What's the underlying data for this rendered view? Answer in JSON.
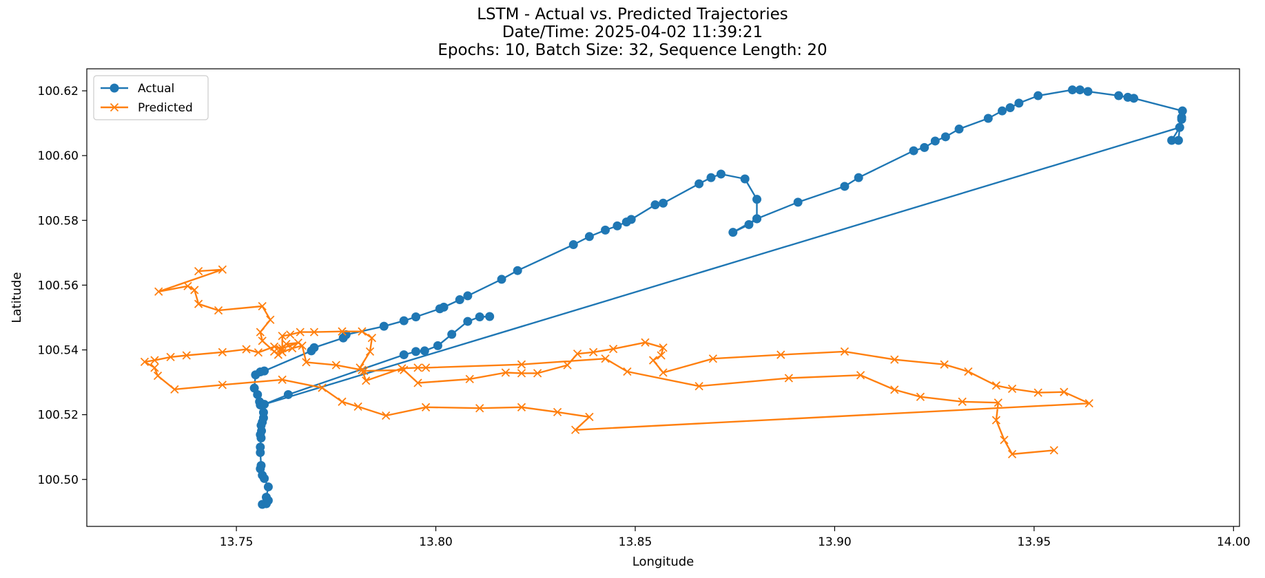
{
  "chart_data": {
    "type": "line",
    "title": [
      "LSTM - Actual vs. Predicted Trajectories",
      "Date/Time: 2025-04-02 11:39:21",
      "Epochs: 10, Batch Size: 32, Sequence Length: 20"
    ],
    "xlabel": "Longitude",
    "ylabel": "Latitude",
    "xlim": [
      13.7125,
      14.0015
    ],
    "ylim": [
      100.4855,
      100.6268
    ],
    "xticks": [
      13.75,
      13.8,
      13.85,
      13.9,
      13.95,
      14.0
    ],
    "xtick_labels": [
      "13.75",
      "13.80",
      "13.85",
      "13.90",
      "13.95",
      "14.00"
    ],
    "yticks": [
      100.5,
      100.52,
      100.54,
      100.56,
      100.58,
      100.6,
      100.62
    ],
    "ytick_labels": [
      "100.50",
      "100.52",
      "100.54",
      "100.56",
      "100.58",
      "100.60",
      "100.62"
    ],
    "grid": false,
    "legend_position": "top-left",
    "series": [
      {
        "name": "Actual",
        "color": "#1f77b4",
        "marker": "circle",
        "points": [
          [
            13.7565,
            100.4923
          ],
          [
            13.7575,
            100.4925
          ],
          [
            13.758,
            100.4935
          ],
          [
            13.7575,
            100.4945
          ],
          [
            13.758,
            100.4977
          ],
          [
            13.757,
            100.5003
          ],
          [
            13.7565,
            100.5013
          ],
          [
            13.756,
            100.5033
          ],
          [
            13.7562,
            100.5043
          ],
          [
            13.756,
            100.5083
          ],
          [
            13.756,
            100.51
          ],
          [
            13.7562,
            100.5128
          ],
          [
            13.756,
            100.5138
          ],
          [
            13.7563,
            100.515
          ],
          [
            13.7562,
            100.5167
          ],
          [
            13.7565,
            100.5177
          ],
          [
            13.7568,
            100.519
          ],
          [
            13.7568,
            100.5207
          ],
          [
            13.756,
            100.523
          ],
          [
            13.7558,
            100.524
          ],
          [
            13.7553,
            100.5262
          ],
          [
            13.7545,
            100.5282
          ],
          [
            13.7548,
            100.5323
          ],
          [
            13.756,
            100.5332
          ],
          [
            13.757,
            100.5335
          ],
          [
            13.7688,
            100.5397
          ],
          [
            13.7695,
            100.5407
          ],
          [
            13.7768,
            100.5437
          ],
          [
            13.7775,
            100.5447
          ],
          [
            13.787,
            100.5473
          ],
          [
            13.792,
            100.549
          ],
          [
            13.795,
            100.5502
          ],
          [
            13.801,
            100.5527
          ],
          [
            13.802,
            100.5532
          ],
          [
            13.806,
            100.5555
          ],
          [
            13.808,
            100.5567
          ],
          [
            13.8165,
            100.5618
          ],
          [
            13.8205,
            100.5645
          ],
          [
            13.8345,
            100.5725
          ],
          [
            13.8385,
            100.575
          ],
          [
            13.8425,
            100.577
          ],
          [
            13.8455,
            100.5783
          ],
          [
            13.8478,
            100.5795
          ],
          [
            13.849,
            100.5803
          ],
          [
            13.855,
            100.5848
          ],
          [
            13.857,
            100.5853
          ],
          [
            13.866,
            100.5913
          ],
          [
            13.869,
            100.5932
          ],
          [
            13.8715,
            100.5943
          ],
          [
            13.8775,
            100.5928
          ],
          [
            13.8805,
            100.5865
          ],
          [
            13.8805,
            100.5805
          ],
          [
            13.8785,
            100.5787
          ],
          [
            13.8745,
            100.5763
          ],
          [
            13.8805,
            100.5805
          ],
          [
            13.8908,
            100.5856
          ],
          [
            13.9025,
            100.5905
          ],
          [
            13.906,
            100.5932
          ],
          [
            13.9198,
            100.6015
          ],
          [
            13.9225,
            100.6025
          ],
          [
            13.9252,
            100.6045
          ],
          [
            13.9278,
            100.6058
          ],
          [
            13.9312,
            100.6082
          ],
          [
            13.9385,
            100.6115
          ],
          [
            13.942,
            100.6138
          ],
          [
            13.944,
            100.6148
          ],
          [
            13.9462,
            100.6162
          ],
          [
            13.951,
            100.6185
          ],
          [
            13.9596,
            100.6203
          ],
          [
            13.9615,
            100.6203
          ],
          [
            13.9635,
            100.6198
          ],
          [
            13.9712,
            100.6185
          ],
          [
            13.9735,
            100.618
          ],
          [
            13.975,
            100.6177
          ],
          [
            13.9872,
            100.6138
          ],
          [
            13.987,
            100.6118
          ],
          [
            13.987,
            100.6112
          ],
          [
            13.9865,
            100.6087
          ],
          [
            13.9862,
            100.6047
          ],
          [
            13.9845,
            100.6047
          ],
          [
            13.9865,
            100.6087
          ],
          [
            13.757,
            100.5232
          ],
          [
            13.763,
            100.5262
          ],
          [
            13.792,
            100.5385
          ],
          [
            13.795,
            100.5395
          ],
          [
            13.7972,
            100.5397
          ],
          [
            13.8005,
            100.5413
          ],
          [
            13.804,
            100.5448
          ],
          [
            13.808,
            100.5488
          ],
          [
            13.811,
            100.5502
          ],
          [
            13.8135,
            100.5503
          ]
        ]
      },
      {
        "name": "Predicted",
        "color": "#ff7f0e",
        "marker": "x",
        "points": [
          [
            13.7405,
            100.5643
          ],
          [
            13.7465,
            100.5648
          ],
          [
            13.7305,
            100.558
          ],
          [
            13.7378,
            100.5597
          ],
          [
            13.7395,
            100.5585
          ],
          [
            13.7405,
            100.5542
          ],
          [
            13.7455,
            100.5522
          ],
          [
            13.7565,
            100.5535
          ],
          [
            13.7585,
            100.5493
          ],
          [
            13.756,
            100.5455
          ],
          [
            13.7565,
            100.5428
          ],
          [
            13.7595,
            100.5395
          ],
          [
            13.7605,
            100.5385
          ],
          [
            13.761,
            100.5402
          ],
          [
            13.7625,
            100.5418
          ],
          [
            13.7655,
            100.5422
          ],
          [
            13.7615,
            100.5405
          ],
          [
            13.7595,
            100.541
          ],
          [
            13.7555,
            100.5392
          ],
          [
            13.7525,
            100.5402
          ],
          [
            13.7465,
            100.5393
          ],
          [
            13.7375,
            100.5383
          ],
          [
            13.7335,
            100.5378
          ],
          [
            13.7295,
            100.5368
          ],
          [
            13.727,
            100.5363
          ],
          [
            13.7295,
            100.5345
          ],
          [
            13.7303,
            100.532
          ],
          [
            13.7345,
            100.5278
          ],
          [
            13.7465,
            100.5292
          ],
          [
            13.7615,
            100.5308
          ],
          [
            13.7715,
            100.5283
          ],
          [
            13.7765,
            100.524
          ],
          [
            13.7805,
            100.5225
          ],
          [
            13.7875,
            100.5197
          ],
          [
            13.7975,
            100.5223
          ],
          [
            13.811,
            100.522
          ],
          [
            13.8215,
            100.5223
          ],
          [
            13.8305,
            100.5208
          ],
          [
            13.8385,
            100.5193
          ],
          [
            13.835,
            100.5153
          ],
          [
            13.9638,
            100.5235
          ],
          [
            13.9575,
            100.527
          ],
          [
            13.951,
            100.5268
          ],
          [
            13.9445,
            100.528
          ],
          [
            13.9405,
            100.529
          ],
          [
            13.9335,
            100.5333
          ],
          [
            13.9275,
            100.5355
          ],
          [
            13.915,
            100.537
          ],
          [
            13.9025,
            100.5395
          ],
          [
            13.8865,
            100.5385
          ],
          [
            13.8695,
            100.5373
          ],
          [
            13.857,
            100.533
          ],
          [
            13.8545,
            100.5368
          ],
          [
            13.8565,
            100.5383
          ],
          [
            13.857,
            100.5407
          ],
          [
            13.8525,
            100.5423
          ],
          [
            13.8445,
            100.5403
          ],
          [
            13.8395,
            100.5393
          ],
          [
            13.8355,
            100.5388
          ],
          [
            13.833,
            100.5353
          ],
          [
            13.8255,
            100.5328
          ],
          [
            13.8215,
            100.5328
          ],
          [
            13.8175,
            100.533
          ],
          [
            13.8085,
            100.531
          ],
          [
            13.7955,
            100.5298
          ],
          [
            13.792,
            100.5338
          ],
          [
            13.782,
            100.5335
          ],
          [
            13.781,
            100.5345
          ],
          [
            13.7835,
            100.5395
          ],
          [
            13.784,
            100.5437
          ],
          [
            13.7815,
            100.5457
          ],
          [
            13.7765,
            100.5457
          ],
          [
            13.7695,
            100.5455
          ],
          [
            13.766,
            100.5455
          ],
          [
            13.7635,
            100.5447
          ],
          [
            13.7615,
            100.5443
          ],
          [
            13.7615,
            100.5393
          ],
          [
            13.764,
            100.5405
          ],
          [
            13.7665,
            100.5413
          ],
          [
            13.7675,
            100.5362
          ],
          [
            13.775,
            100.5353
          ],
          [
            13.7815,
            100.5338
          ],
          [
            13.7825,
            100.5305
          ],
          [
            13.7915,
            100.5343
          ],
          [
            13.7955,
            100.5345
          ],
          [
            13.7975,
            100.5345
          ],
          [
            13.8215,
            100.5355
          ],
          [
            13.8425,
            100.5373
          ],
          [
            13.848,
            100.5333
          ],
          [
            13.866,
            100.5288
          ],
          [
            13.8885,
            100.5313
          ],
          [
            13.9065,
            100.5322
          ],
          [
            13.915,
            100.5277
          ],
          [
            13.9215,
            100.5255
          ],
          [
            13.932,
            100.524
          ],
          [
            13.941,
            100.5237
          ],
          [
            13.9405,
            100.5183
          ],
          [
            13.9425,
            100.5122
          ],
          [
            13.9445,
            100.5078
          ],
          [
            13.955,
            100.509
          ]
        ]
      }
    ]
  }
}
